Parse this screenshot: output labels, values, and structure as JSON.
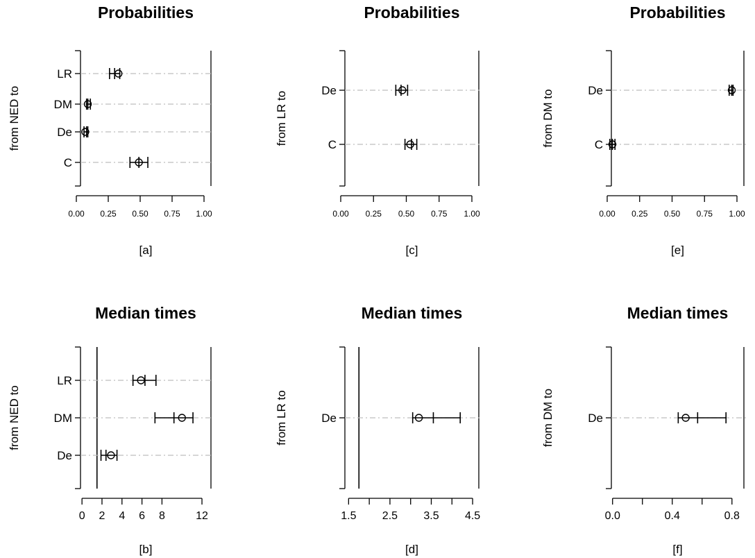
{
  "chart_data": [
    {
      "id": "a",
      "type": "interval",
      "title": "Probabilities",
      "ylabel": "from NED to",
      "xlabel": "[a]",
      "xlim": [
        0,
        1
      ],
      "xticks": [
        "0.00",
        "0.25",
        "0.50",
        "0.75",
        "1.00"
      ],
      "categories": [
        "C",
        "De",
        "DM",
        "LR"
      ],
      "reference_line": null,
      "series": [
        {
          "category": "LR",
          "point": 0.33,
          "ci_low": 0.26,
          "ci_high": 0.34,
          "mid": 0.3
        },
        {
          "category": "DM",
          "point": 0.09,
          "ci_low": 0.08,
          "ci_high": 0.11,
          "mid": 0.09
        },
        {
          "category": "De",
          "point": 0.07,
          "ci_low": 0.06,
          "ci_high": 0.09,
          "mid": 0.08
        },
        {
          "category": "C",
          "point": 0.49,
          "ci_low": 0.42,
          "ci_high": 0.56,
          "mid": 0.49
        }
      ]
    },
    {
      "id": "c",
      "type": "interval",
      "title": "Probabilities",
      "ylabel": "from LR to",
      "xlabel": "[c]",
      "xlim": [
        0,
        1
      ],
      "xticks": [
        "0.00",
        "0.25",
        "0.50",
        "0.75",
        "1.00"
      ],
      "categories": [
        "C",
        "De"
      ],
      "reference_line": null,
      "series": [
        {
          "category": "De",
          "point": 0.47,
          "ci_low": 0.42,
          "ci_high": 0.51,
          "mid": 0.46
        },
        {
          "category": "C",
          "point": 0.53,
          "ci_low": 0.49,
          "ci_high": 0.58,
          "mid": 0.54
        }
      ]
    },
    {
      "id": "e",
      "type": "interval",
      "title": "Probabilities",
      "ylabel": "from DM to",
      "xlabel": "[e]",
      "xlim": [
        0,
        1
      ],
      "xticks": [
        "0.00",
        "0.25",
        "0.50",
        "0.75",
        "1.00"
      ],
      "categories": [
        "C",
        "De"
      ],
      "reference_line": null,
      "series": [
        {
          "category": "De",
          "point": 0.96,
          "ci_low": 0.94,
          "ci_high": 0.97,
          "mid": 0.96
        },
        {
          "category": "C",
          "point": 0.04,
          "ci_low": 0.02,
          "ci_high": 0.06,
          "mid": 0.04
        }
      ]
    },
    {
      "id": "b",
      "type": "interval",
      "title": "Median times",
      "ylabel": "from NED to",
      "xlabel": "[b]",
      "xlim": [
        0,
        12
      ],
      "xticks": [
        "0",
        "2",
        "4",
        "6",
        "8",
        "12"
      ],
      "xtick_values": [
        0,
        2,
        4,
        6,
        8,
        12
      ],
      "categories": [
        "De",
        "DM",
        "LR"
      ],
      "reference_line": 1.5,
      "series": [
        {
          "category": "LR",
          "point": 5.9,
          "ci_low": 5.1,
          "ci_high": 7.4,
          "mid": 6.3
        },
        {
          "category": "DM",
          "point": 10.0,
          "ci_low": 7.3,
          "ci_high": 11.1,
          "mid": 9.2
        },
        {
          "category": "De",
          "point": 2.9,
          "ci_low": 1.9,
          "ci_high": 3.5,
          "mid": 2.4
        }
      ]
    },
    {
      "id": "d",
      "type": "interval",
      "title": "Median times",
      "ylabel": "from LR to",
      "xlabel": "[d]",
      "xlim": [
        1.5,
        4.5
      ],
      "xticks": [
        "1.5",
        "2.5",
        "3.5",
        "4.5"
      ],
      "xtick_values": [
        1.5,
        2,
        2.5,
        3,
        3.5,
        4,
        4.5
      ],
      "categories": [
        "De"
      ],
      "reference_line": 1.75,
      "series": [
        {
          "category": "De",
          "point": 3.2,
          "ci_low": 3.05,
          "ci_high": 4.2,
          "mid": 3.55
        }
      ]
    },
    {
      "id": "f",
      "type": "interval",
      "title": "Median times",
      "ylabel": "from DM to",
      "xlabel": "[f]",
      "xlim": [
        0,
        0.8
      ],
      "xticks": [
        "0.0",
        "0.4",
        "0.8"
      ],
      "xtick_values": [
        0,
        0.2,
        0.4,
        0.6,
        0.8
      ],
      "categories": [
        "De"
      ],
      "reference_line": null,
      "series": [
        {
          "category": "De",
          "point": 0.49,
          "ci_low": 0.44,
          "ci_high": 0.76,
          "mid": 0.57
        }
      ]
    }
  ]
}
